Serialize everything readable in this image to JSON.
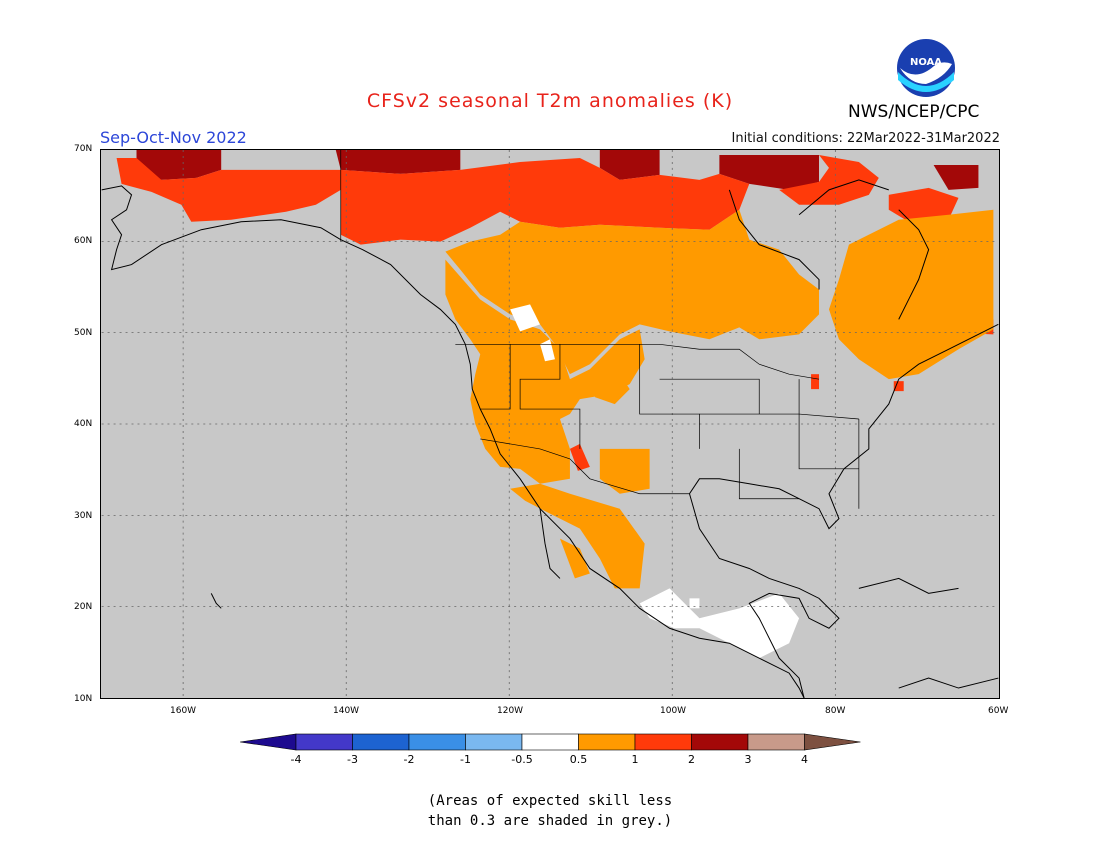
{
  "title": "CFSv2 seasonal T2m anomalies (K)",
  "season": "Sep-Oct-Nov 2022",
  "initial_conditions": "Initial conditions: 22Mar2022-31Mar2022",
  "agency": "NWS/NCEP/CPC",
  "logo_text": "NOAA",
  "map": {
    "lat_range": [
      10,
      70
    ],
    "lon_range": [
      -170,
      -60
    ],
    "lat_ticks": [
      "70N",
      "60N",
      "50N",
      "40N",
      "30N",
      "20N",
      "10N"
    ],
    "lon_ticks": [
      "160W",
      "140W",
      "120W",
      "100W",
      "80W",
      "60W"
    ],
    "grid": "dotted",
    "background_color": "#c8c8c8"
  },
  "colorbar": {
    "labels": [
      "-4",
      "-3",
      "-2",
      "-1",
      "-0.5",
      "0.5",
      "1",
      "2",
      "3",
      "4"
    ],
    "colors": [
      "#1d0a8f",
      "#4338c9",
      "#1d63d1",
      "#3a8fe6",
      "#7ab8f0",
      "#ffffff",
      "#ff9a00",
      "#ff3a0a",
      "#a30808",
      "#c89a8a",
      "#7d5040"
    ]
  },
  "footnote": {
    "line1": "(Areas of expected skill less",
    "line2": "than 0.3 are shaded in grey.)"
  }
}
